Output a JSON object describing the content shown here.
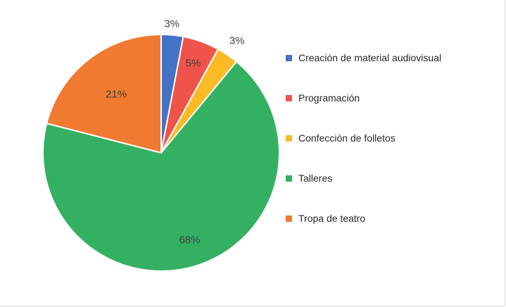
{
  "chart_data": {
    "type": "pie",
    "title": "",
    "legend_position": "right",
    "start_angle_deg": 0,
    "direction": "clockwise",
    "slices": [
      {
        "name": "Creación de material audiovisual",
        "value": 3,
        "label": "3%",
        "color": "#4472C4"
      },
      {
        "name": "Programación",
        "value": 5,
        "label": "5%",
        "color": "#EF5349"
      },
      {
        "name": "Confección de folletos",
        "value": 3,
        "label": "3%",
        "color": "#FBBA26"
      },
      {
        "name": "Talleres",
        "value": 68,
        "label": "68%",
        "color": "#33B062"
      },
      {
        "name": "Tropa de teatro",
        "value": 21,
        "label": "21%",
        "color": "#F07A30"
      }
    ]
  }
}
